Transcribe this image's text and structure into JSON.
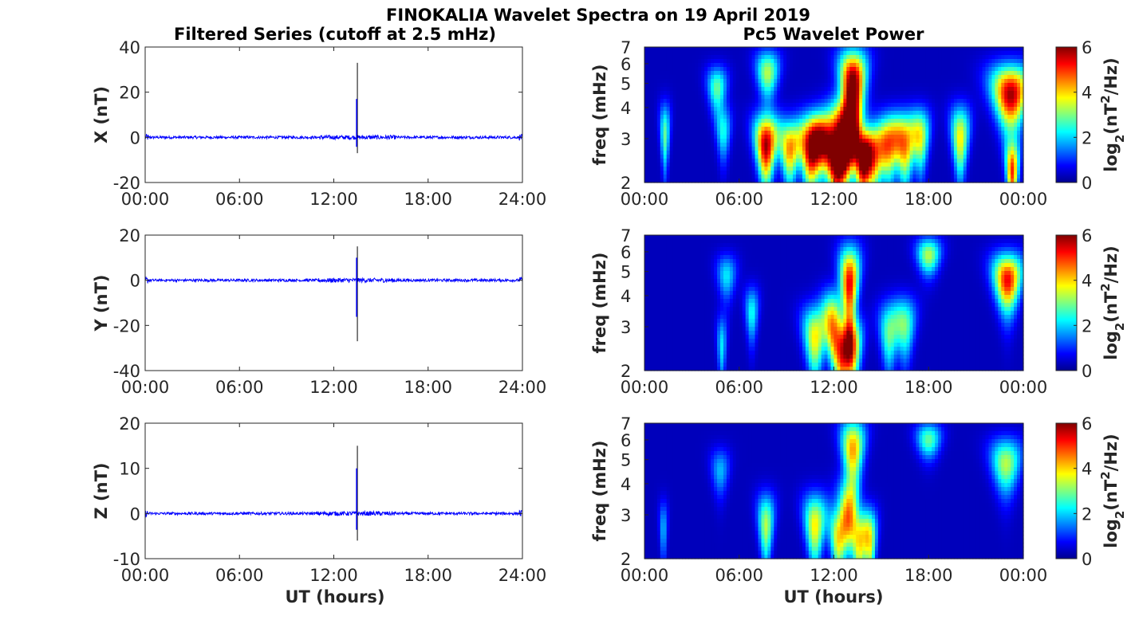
{
  "figure": {
    "title": "FINOKALIA Wavelet Spectra on 19 April 2019",
    "left_column_title": "Filtered Series (cutoff at 2.5 mHz)",
    "right_column_title": "Pc5 Wavelet Power",
    "xlabel": "UT (hours)"
  },
  "colors": {
    "trace": "#0000ff",
    "spike": "#000000",
    "axis": "#262626",
    "colormap": "jet"
  },
  "chart_data": [
    {
      "type": "line",
      "panel": "X",
      "ylabel": "X (nT)",
      "xlim": [
        0,
        24
      ],
      "ylim": [
        -20,
        40
      ],
      "xticks": [
        0,
        6,
        12,
        18,
        24
      ],
      "xtick_labels": [
        "00:00",
        "06:00",
        "12:00",
        "18:00",
        "24:00"
      ],
      "yticks": [
        -20,
        0,
        20,
        40
      ],
      "ytick_labels": [
        "-20",
        "0",
        "20",
        "40"
      ],
      "baseline": 0,
      "noise_amplitude": 0.6,
      "spike": {
        "time": 13.5,
        "max": 33,
        "min": -7,
        "blue_max": 17
      },
      "grid": false
    },
    {
      "type": "line",
      "panel": "Y",
      "ylabel": "Y (nT)",
      "xlim": [
        0,
        24
      ],
      "ylim": [
        -40,
        20
      ],
      "xticks": [
        0,
        6,
        12,
        18,
        24
      ],
      "xtick_labels": [
        "00:00",
        "06:00",
        "12:00",
        "18:00",
        "24:00"
      ],
      "yticks": [
        -40,
        -20,
        0,
        20
      ],
      "ytick_labels": [
        "-40",
        "-20",
        "0",
        "20"
      ],
      "baseline": 0,
      "noise_amplitude": 0.6,
      "spike": {
        "time": 13.5,
        "max": 15,
        "min": -27,
        "blue_max": 10
      },
      "grid": false
    },
    {
      "type": "line",
      "panel": "Z",
      "ylabel": "Z (nT)",
      "xlim": [
        0,
        24
      ],
      "ylim": [
        -10,
        20
      ],
      "xticks": [
        0,
        6,
        12,
        18,
        24
      ],
      "xtick_labels": [
        "00:00",
        "06:00",
        "12:00",
        "18:00",
        "24:00"
      ],
      "yticks": [
        -10,
        0,
        10,
        20
      ],
      "ytick_labels": [
        "-10",
        "0",
        "10",
        "20"
      ],
      "baseline": 0,
      "noise_amplitude": 0.3,
      "spike": {
        "time": 13.5,
        "max": 15,
        "min": -6,
        "blue_max": 10
      },
      "grid": false
    },
    {
      "type": "heatmap",
      "panel": "X",
      "ylabel": "freq (mHz)",
      "xlim": [
        0,
        24
      ],
      "ylim": [
        2,
        7
      ],
      "yscale": "log",
      "xticks": [
        0,
        6,
        12,
        18,
        24
      ],
      "xtick_labels": [
        "00:00",
        "06:00",
        "12:00",
        "18:00",
        "00:00"
      ],
      "yticks": [
        2,
        3,
        4,
        5,
        6,
        7
      ],
      "ytick_labels": [
        "2",
        "3",
        "4",
        "5",
        "6",
        "7"
      ],
      "colorbar": {
        "label_base": "log",
        "label_sub": "2",
        "label_mid": "(nT",
        "label_sup": "2",
        "label_end": "/Hz)",
        "range": [
          0,
          6
        ],
        "ticks": [
          0,
          2,
          4,
          6
        ],
        "tick_labels": [
          "0",
          "2",
          "4",
          "6"
        ]
      },
      "blobs": [
        {
          "t": 1.3,
          "f": 3.1,
          "amp": 2.5,
          "dt": 0.08,
          "df": 0.3
        },
        {
          "t": 4.6,
          "f": 4.8,
          "amp": 2.5,
          "dt": 0.1,
          "df": 0.3
        },
        {
          "t": 5.0,
          "f": 3.2,
          "amp": 2.0,
          "dt": 0.12,
          "df": 0.22
        },
        {
          "t": 7.7,
          "f": 2.8,
          "amp": 5.5,
          "dt": 0.2,
          "df": 0.25
        },
        {
          "t": 7.8,
          "f": 5.5,
          "amp": 3.0,
          "dt": 0.1,
          "df": 0.4
        },
        {
          "t": 9.2,
          "f": 2.7,
          "amp": 4.0,
          "dt": 0.2,
          "df": 0.2
        },
        {
          "t": 10.5,
          "f": 2.6,
          "amp": 4.5,
          "dt": 0.22,
          "df": 0.22
        },
        {
          "t": 11.2,
          "f": 3.0,
          "amp": 4.0,
          "dt": 0.25,
          "df": 0.25
        },
        {
          "t": 12.2,
          "f": 2.4,
          "amp": 6.0,
          "dt": 0.25,
          "df": 0.2
        },
        {
          "t": 12.8,
          "f": 3.2,
          "amp": 5.5,
          "dt": 0.2,
          "df": 0.35
        },
        {
          "t": 13.2,
          "f": 5.0,
          "amp": 6.0,
          "dt": 0.12,
          "df": 0.6
        },
        {
          "t": 13.8,
          "f": 2.4,
          "amp": 5.0,
          "dt": 0.2,
          "df": 0.2
        },
        {
          "t": 14.5,
          "f": 2.5,
          "amp": 4.0,
          "dt": 0.25,
          "df": 0.2
        },
        {
          "t": 15.5,
          "f": 2.8,
          "amp": 3.5,
          "dt": 0.2,
          "df": 0.25
        },
        {
          "t": 16.5,
          "f": 2.8,
          "amp": 4.0,
          "dt": 0.2,
          "df": 0.25
        },
        {
          "t": 17.5,
          "f": 3.0,
          "amp": 3.0,
          "dt": 0.15,
          "df": 0.25
        },
        {
          "t": 20.0,
          "f": 3.0,
          "amp": 3.5,
          "dt": 0.15,
          "df": 0.3
        },
        {
          "t": 23.2,
          "f": 4.5,
          "amp": 5.5,
          "dt": 0.2,
          "df": 0.45
        },
        {
          "t": 23.3,
          "f": 2.2,
          "amp": 4.5,
          "dt": 0.15,
          "df": 0.15
        }
      ]
    },
    {
      "type": "heatmap",
      "panel": "Y",
      "ylabel": "freq (mHz)",
      "xlim": [
        0,
        24
      ],
      "ylim": [
        2,
        7
      ],
      "yscale": "log",
      "xticks": [
        0,
        6,
        12,
        18,
        24
      ],
      "xtick_labels": [
        "00:00",
        "06:00",
        "12:00",
        "18:00",
        "00:00"
      ],
      "yticks": [
        2,
        3,
        4,
        5,
        6,
        7
      ],
      "ytick_labels": [
        "2",
        "3",
        "4",
        "5",
        "6",
        "7"
      ],
      "colorbar": {
        "label_base": "log",
        "label_sub": "2",
        "label_mid": "(nT",
        "label_sup": "2",
        "label_end": "/Hz)",
        "range": [
          0,
          6
        ],
        "ticks": [
          0,
          2,
          4,
          6
        ],
        "tick_labels": [
          "0",
          "2",
          "4",
          "6"
        ]
      },
      "blobs": [
        {
          "t": 4.9,
          "f": 2.5,
          "amp": 1.8,
          "dt": 0.1,
          "df": 0.2
        },
        {
          "t": 5.2,
          "f": 4.8,
          "amp": 1.8,
          "dt": 0.1,
          "df": 0.3
        },
        {
          "t": 6.8,
          "f": 3.4,
          "amp": 2.0,
          "dt": 0.1,
          "df": 0.25
        },
        {
          "t": 10.8,
          "f": 2.7,
          "amp": 3.5,
          "dt": 0.22,
          "df": 0.25
        },
        {
          "t": 11.9,
          "f": 3.2,
          "amp": 3.0,
          "dt": 0.15,
          "df": 0.3
        },
        {
          "t": 12.5,
          "f": 2.3,
          "amp": 4.5,
          "dt": 0.22,
          "df": 0.2
        },
        {
          "t": 13.0,
          "f": 4.5,
          "amp": 5.0,
          "dt": 0.1,
          "df": 0.6
        },
        {
          "t": 13.2,
          "f": 2.4,
          "amp": 3.5,
          "dt": 0.2,
          "df": 0.2
        },
        {
          "t": 15.5,
          "f": 2.8,
          "amp": 2.5,
          "dt": 0.18,
          "df": 0.25
        },
        {
          "t": 16.5,
          "f": 3.0,
          "amp": 2.5,
          "dt": 0.18,
          "df": 0.25
        },
        {
          "t": 18.0,
          "f": 5.8,
          "amp": 3.0,
          "dt": 0.1,
          "df": 0.3
        },
        {
          "t": 23.0,
          "f": 4.6,
          "amp": 5.0,
          "dt": 0.15,
          "df": 0.4
        }
      ]
    },
    {
      "type": "heatmap",
      "panel": "Z",
      "ylabel": "freq (mHz)",
      "xlim": [
        0,
        24
      ],
      "ylim": [
        2,
        7
      ],
      "yscale": "log",
      "xticks": [
        0,
        6,
        12,
        18,
        24
      ],
      "xtick_labels": [
        "00:00",
        "06:00",
        "12:00",
        "18:00",
        "00:00"
      ],
      "yticks": [
        2,
        3,
        4,
        5,
        6,
        7
      ],
      "ytick_labels": [
        "2",
        "3",
        "4",
        "5",
        "6",
        "7"
      ],
      "colorbar": {
        "label_base": "log",
        "label_sub": "2",
        "label_mid": "(nT",
        "label_sup": "2",
        "label_end": "/Hz)",
        "range": [
          0,
          6
        ],
        "ticks": [
          0,
          2,
          4,
          6
        ],
        "tick_labels": [
          "0",
          "2",
          "4",
          "6"
        ]
      },
      "blobs": [
        {
          "t": 1.2,
          "f": 2.6,
          "amp": 1.5,
          "dt": 0.08,
          "df": 0.2
        },
        {
          "t": 4.8,
          "f": 4.5,
          "amp": 1.5,
          "dt": 0.1,
          "df": 0.3
        },
        {
          "t": 7.7,
          "f": 2.7,
          "amp": 3.0,
          "dt": 0.15,
          "df": 0.25
        },
        {
          "t": 10.8,
          "f": 2.7,
          "amp": 3.5,
          "dt": 0.2,
          "df": 0.25
        },
        {
          "t": 12.3,
          "f": 2.4,
          "amp": 3.5,
          "dt": 0.2,
          "df": 0.2
        },
        {
          "t": 12.9,
          "f": 3.2,
          "amp": 3.0,
          "dt": 0.15,
          "df": 0.3
        },
        {
          "t": 13.2,
          "f": 5.5,
          "amp": 4.0,
          "dt": 0.1,
          "df": 0.6
        },
        {
          "t": 13.6,
          "f": 2.3,
          "amp": 3.5,
          "dt": 0.2,
          "df": 0.2
        },
        {
          "t": 14.3,
          "f": 2.3,
          "amp": 3.0,
          "dt": 0.15,
          "df": 0.2
        },
        {
          "t": 18.0,
          "f": 6.0,
          "amp": 2.5,
          "dt": 0.1,
          "df": 0.3
        },
        {
          "t": 22.9,
          "f": 4.8,
          "amp": 3.0,
          "dt": 0.15,
          "df": 0.4
        }
      ]
    }
  ]
}
